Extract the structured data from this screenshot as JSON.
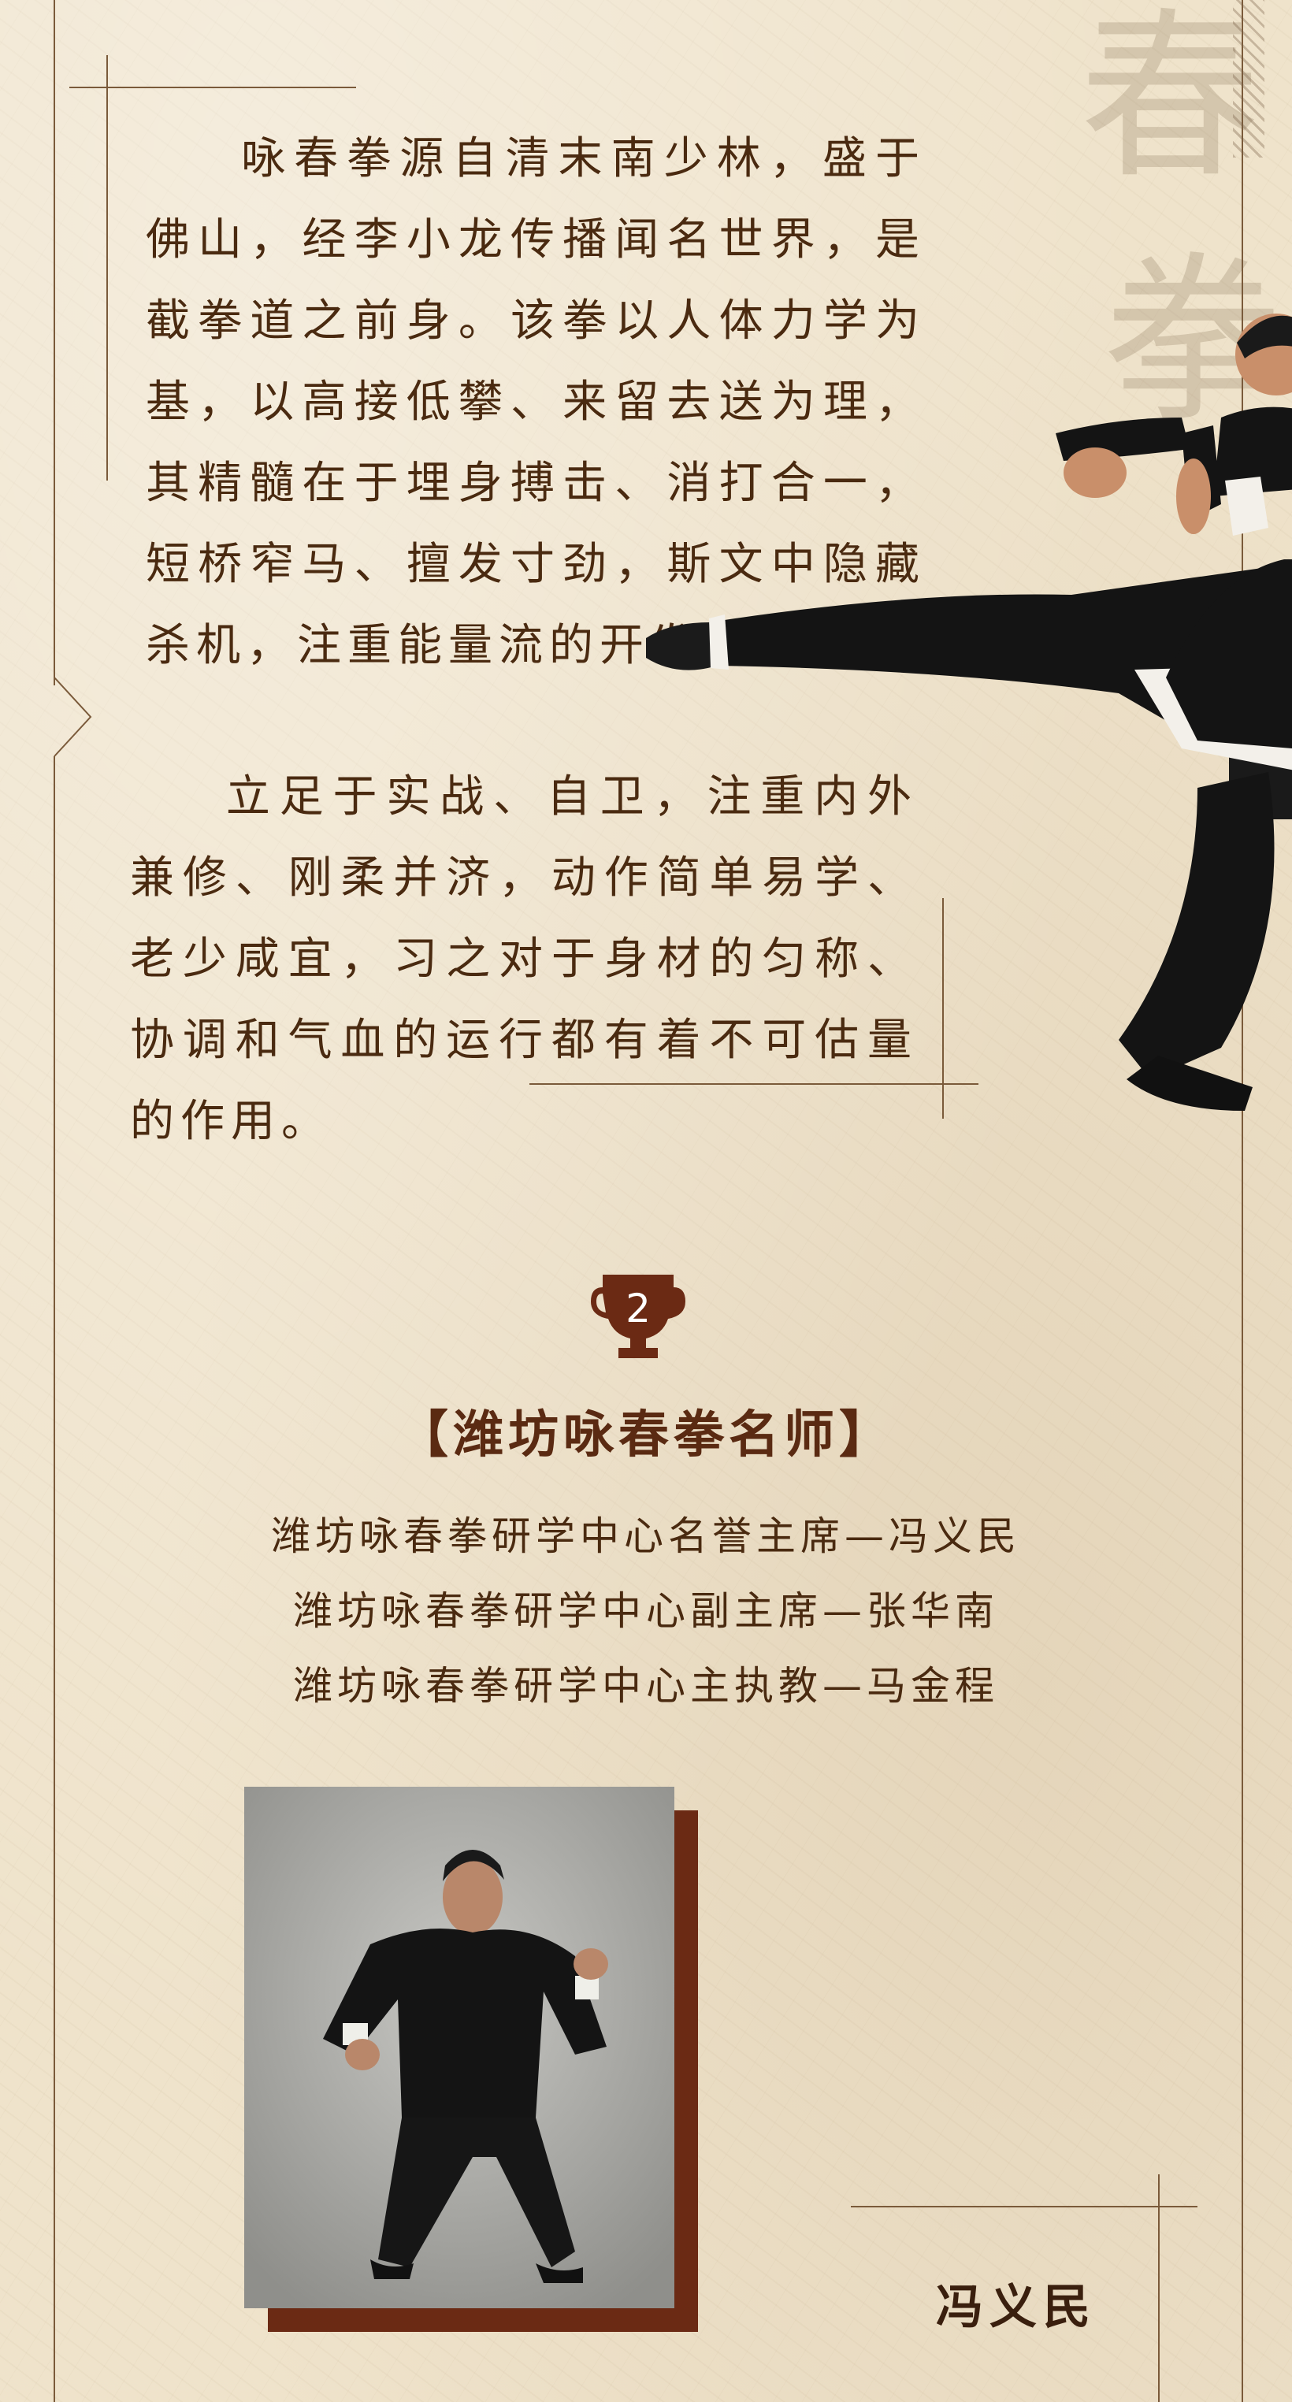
{
  "intro": {
    "paragraph1": "咏春拳源自清末南少林，盛于佛山，经李小龙传播闻名世界，是截拳道之前身。该拳以人体力学为基，以高接低攀、来留去送为理，其精髓在于埋身搏击、消打合一，短桥窄马、擅发寸劲，斯文中隐藏杀机，注重能量流的开发利用。",
    "paragraph2": "立足于实战、自卫，注重内外兼修、刚柔并济，动作简单易学、老少咸宜，习之对于身材的匀称、协调和气血的运行都有着不可估量的作用。"
  },
  "watermark": {
    "chars": [
      "春",
      "拳"
    ]
  },
  "section": {
    "number": "2",
    "title": "【潍坊咏春拳名师】",
    "roles": [
      "潍坊咏春拳研学中心名誉主席—冯义民",
      "潍坊咏春拳研学中心副主席—张华南",
      "潍坊咏春拳研学中心主执教—马金程"
    ]
  },
  "photo": {
    "caption": "冯义民"
  },
  "colors": {
    "paper": "#efe3cb",
    "text": "#4a2a10",
    "accent": "#6b2a14",
    "line": "#7a5a3a"
  },
  "icons": {
    "trophy": "trophy-icon"
  }
}
